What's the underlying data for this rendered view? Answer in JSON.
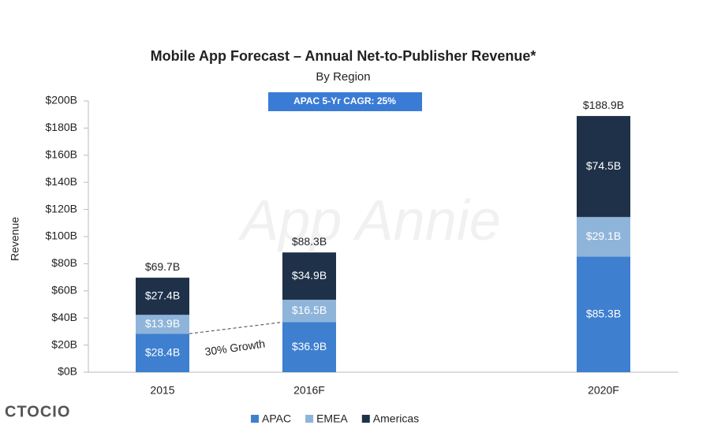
{
  "chart_data": {
    "type": "stacked-bar",
    "title": "Mobile App Forecast – Annual Net-to-Publisher Revenue*",
    "subtitle": "By Region",
    "y_label": "Revenue",
    "annotations": [
      "APAC 5-Yr CAGR: 25%",
      "30% Growth"
    ],
    "watermark": "App Annie",
    "source_mark": "CTOCIO",
    "categories": [
      "2015",
      "2016F",
      "2020F"
    ],
    "series": [
      {
        "name": "APAC",
        "color": "#3e7fcf",
        "values": [
          28.4,
          36.9,
          85.3
        ],
        "value_labels": [
          "$28.4B",
          "$36.9B",
          "$85.3B"
        ]
      },
      {
        "name": "EMEA",
        "color": "#8fb4da",
        "values": [
          13.9,
          16.5,
          29.1
        ],
        "value_labels": [
          "$13.9B",
          "$16.5B",
          "$29.1B"
        ]
      },
      {
        "name": "Americas",
        "color": "#1f3149",
        "values": [
          27.4,
          34.9,
          74.5
        ],
        "value_labels": [
          "$27.4B",
          "$34.9B",
          "$74.5B"
        ]
      }
    ],
    "totals": {
      "values": [
        69.7,
        88.3,
        188.9
      ],
      "value_labels": [
        "$69.7B",
        "$88.3B",
        "$188.9B"
      ]
    },
    "ylim": [
      0,
      200
    ],
    "yticks": [
      {
        "value": 0,
        "label": "$0B"
      },
      {
        "value": 20,
        "label": "$20B"
      },
      {
        "value": 40,
        "label": "$40B"
      },
      {
        "value": 60,
        "label": "$60B"
      },
      {
        "value": 80,
        "label": "$80B"
      },
      {
        "value": 100,
        "label": "$100B"
      },
      {
        "value": 120,
        "label": "$120B"
      },
      {
        "value": 140,
        "label": "$140B"
      },
      {
        "value": 160,
        "label": "$160B"
      },
      {
        "value": 180,
        "label": "$180B"
      },
      {
        "value": 200,
        "label": "$200B"
      }
    ],
    "grid": false
  }
}
